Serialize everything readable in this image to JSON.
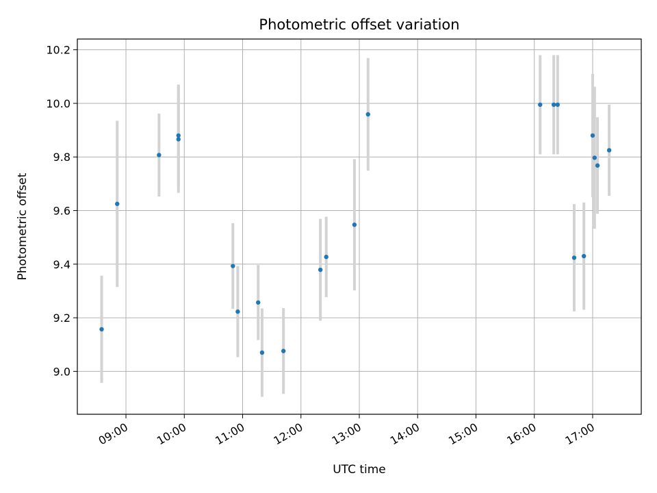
{
  "chart_data": {
    "type": "scatter",
    "title": "Photometric offset variation",
    "xlabel": "UTC time",
    "ylabel": "Photometric offset",
    "x_unit": "UTC time",
    "xlim": [
      "08:10",
      "17:50"
    ],
    "ylim": [
      8.84,
      10.24
    ],
    "grid": true,
    "x_ticks": [
      "09:00",
      "10:00",
      "11:00",
      "12:00",
      "13:00",
      "14:00",
      "15:00",
      "16:00",
      "17:00"
    ],
    "y_ticks": [
      "9.0",
      "9.2",
      "9.4",
      "9.6",
      "9.8",
      "10.0",
      "10.2"
    ],
    "series": [
      {
        "color": "#1f77b4",
        "error_color": "#d3d3d3",
        "points": [
          {
            "x": "08:35",
            "y": 9.157,
            "yerr": 0.2
          },
          {
            "x": "08:51",
            "y": 9.625,
            "yerr": 0.31
          },
          {
            "x": "09:34",
            "y": 9.807,
            "yerr": 0.155
          },
          {
            "x": "09:54",
            "y": 9.866,
            "yerr": 0.2
          },
          {
            "x": "09:54",
            "y": 9.88,
            "yerr": 0.19
          },
          {
            "x": "10:50",
            "y": 9.393,
            "yerr": 0.16
          },
          {
            "x": "10:55",
            "y": 9.223,
            "yerr": 0.17
          },
          {
            "x": "11:16",
            "y": 9.257,
            "yerr": 0.14
          },
          {
            "x": "11:20",
            "y": 9.07,
            "yerr": 0.165
          },
          {
            "x": "11:42",
            "y": 9.076,
            "yerr": 0.16
          },
          {
            "x": "12:20",
            "y": 9.379,
            "yerr": 0.19
          },
          {
            "x": "12:26",
            "y": 9.427,
            "yerr": 0.15
          },
          {
            "x": "12:55",
            "y": 9.547,
            "yerr": 0.245
          },
          {
            "x": "13:09",
            "y": 9.959,
            "yerr": 0.21
          },
          {
            "x": "16:06",
            "y": 9.995,
            "yerr": 0.185
          },
          {
            "x": "16:20",
            "y": 9.995,
            "yerr": 0.185
          },
          {
            "x": "16:24",
            "y": 9.995,
            "yerr": 0.185
          },
          {
            "x": "16:41",
            "y": 9.424,
            "yerr": 0.2
          },
          {
            "x": "16:51",
            "y": 9.43,
            "yerr": 0.2
          },
          {
            "x": "17:00",
            "y": 9.88,
            "yerr": 0.23
          },
          {
            "x": "17:02",
            "y": 9.797,
            "yerr": 0.265
          },
          {
            "x": "17:05",
            "y": 9.768,
            "yerr": 0.18
          },
          {
            "x": "17:17",
            "y": 9.825,
            "yerr": 0.17
          }
        ]
      }
    ]
  }
}
